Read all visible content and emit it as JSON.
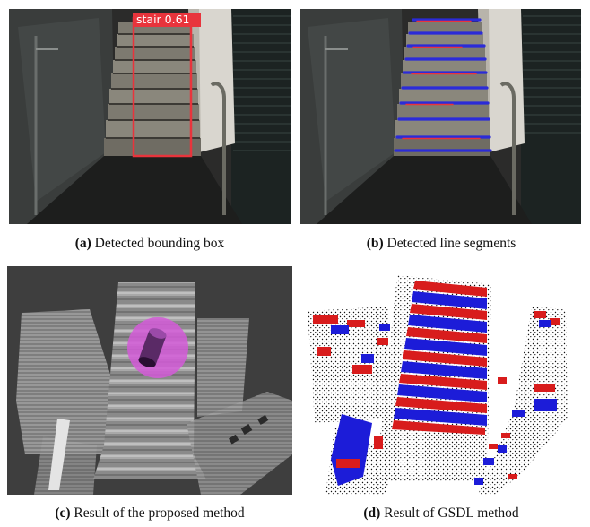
{
  "figure": {
    "panels": [
      {
        "label": "(a)",
        "caption": "Detected bounding box"
      },
      {
        "label": "(b)",
        "caption": "Detected line segments"
      },
      {
        "label": "(c)",
        "caption": "Result of the proposed method"
      },
      {
        "label": "(d)",
        "caption": "Result of GSDL method"
      }
    ],
    "detection": {
      "text": "stair 0.61",
      "box_color": "#e8343c"
    },
    "line_segment_color": "#2b2bd8",
    "gsdl_colors": {
      "riser": "#d81c1c",
      "tread": "#1c1cd8",
      "points": "#111111"
    },
    "proposed_method_highlight": "#d35ad8"
  }
}
